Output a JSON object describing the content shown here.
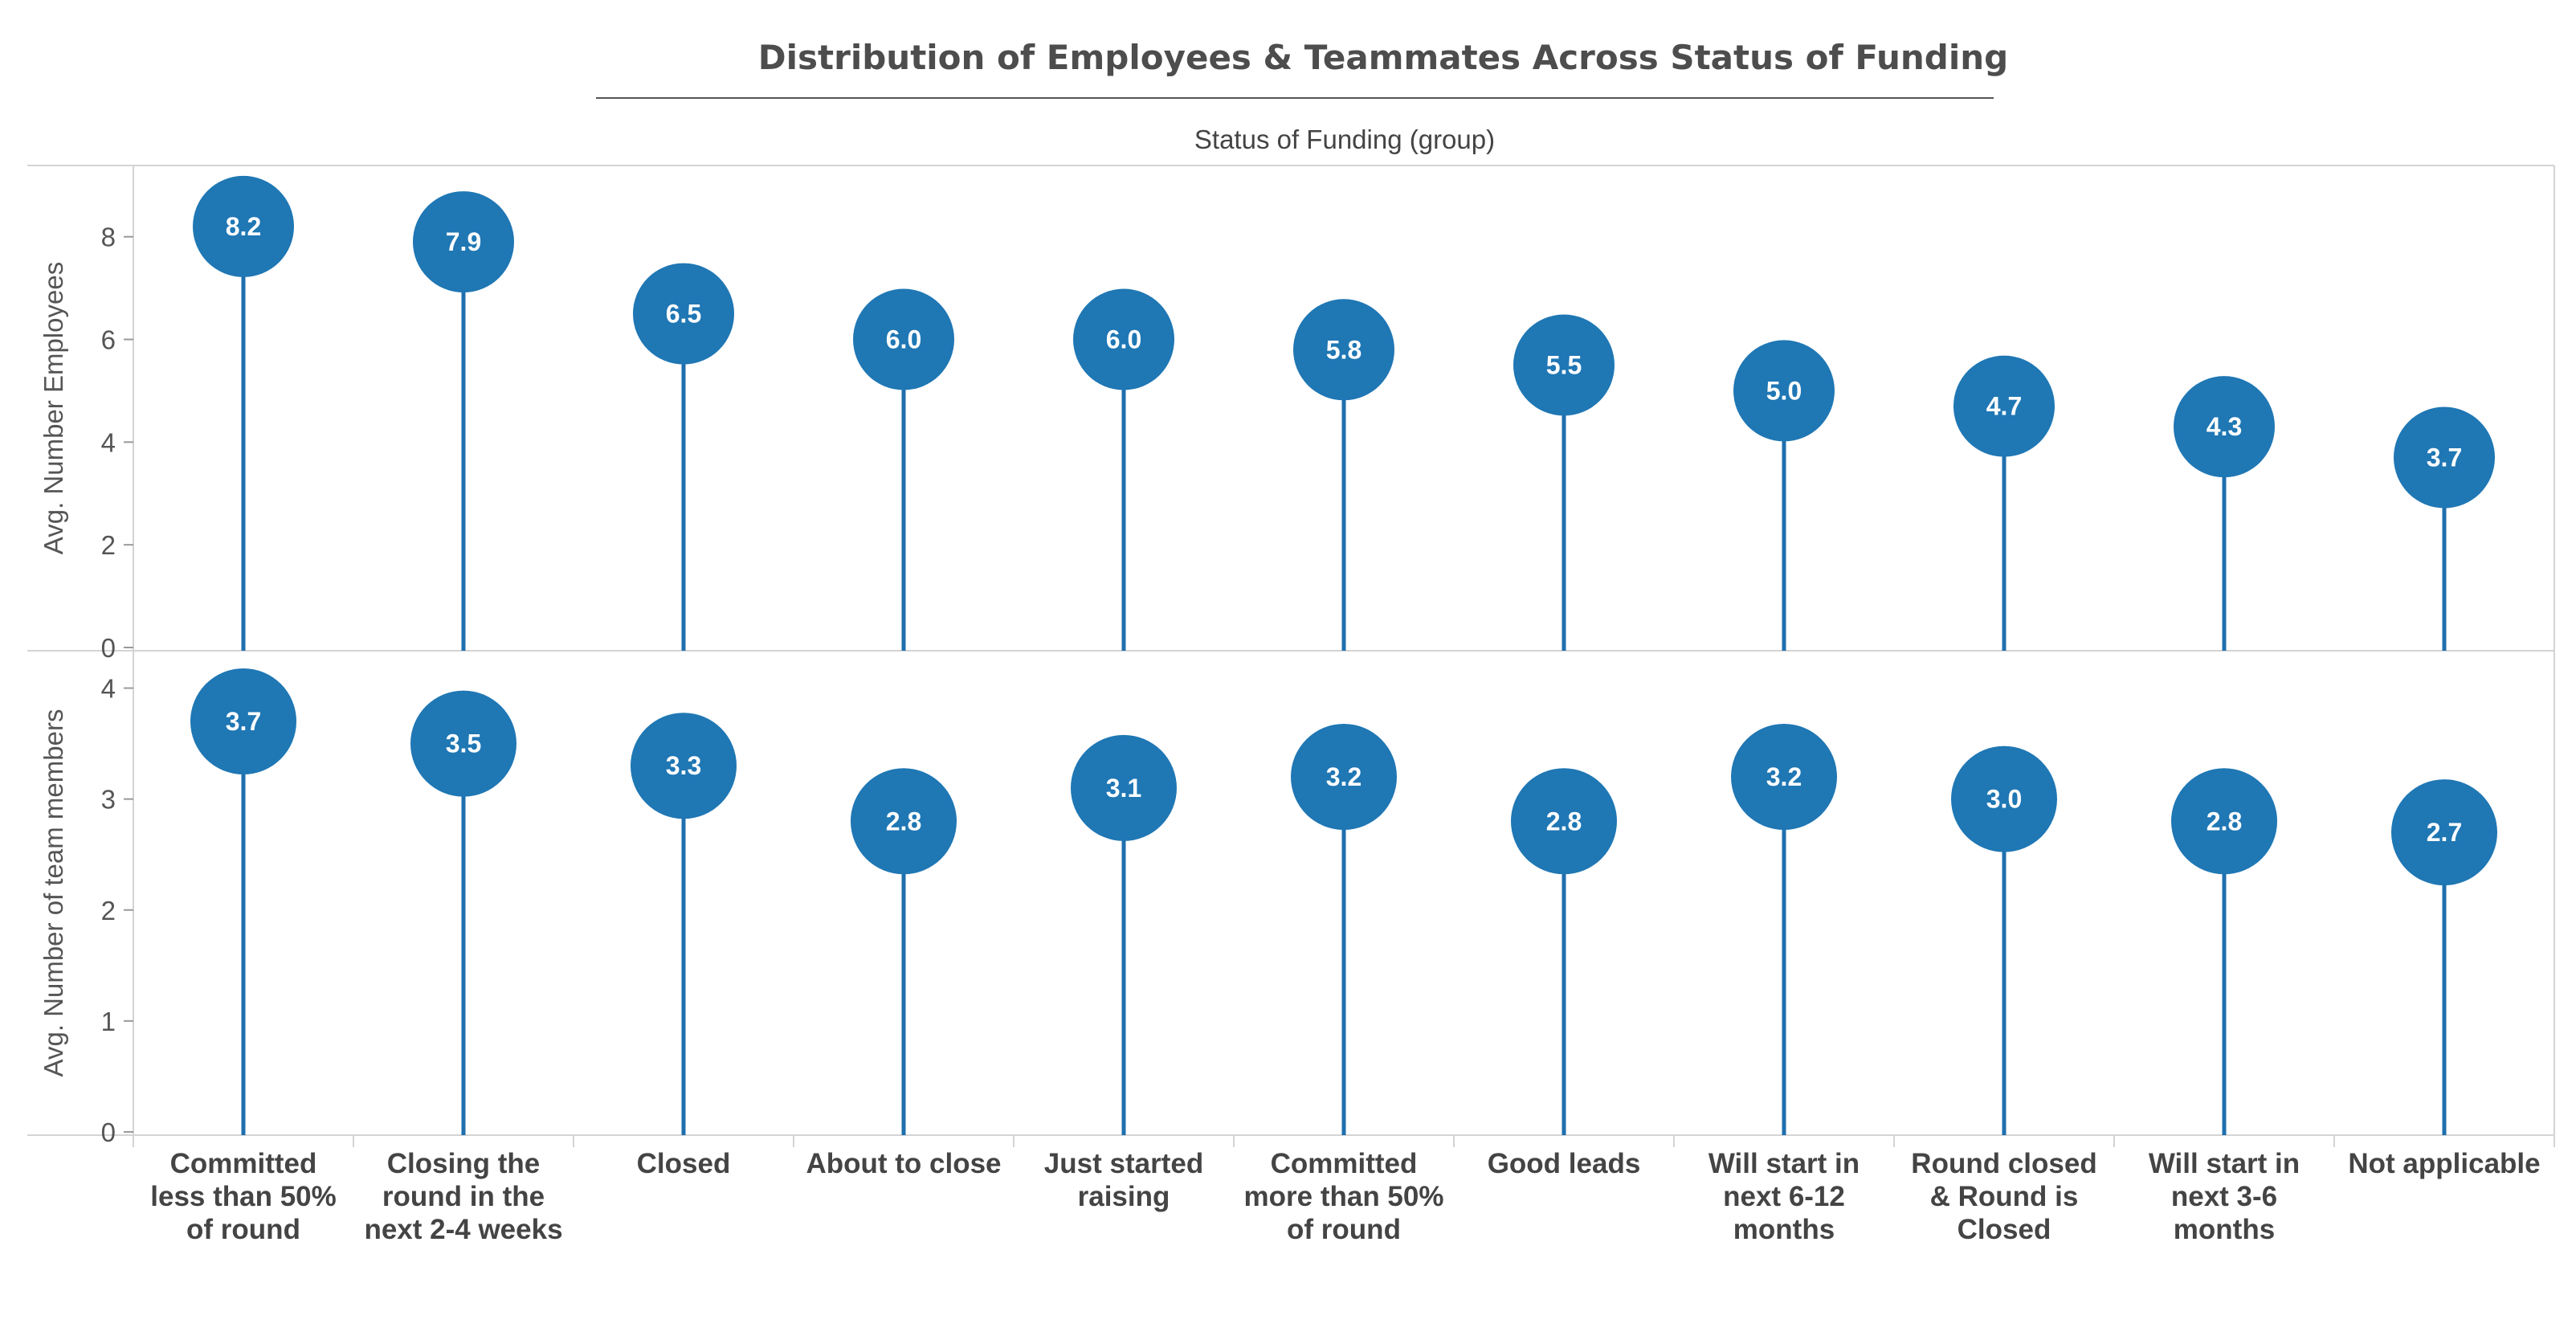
{
  "chart_data": {
    "type": "lollipop",
    "title": "Distribution of Employees & Teammates Across Status of Funding",
    "column_header": "Status of Funding (group)",
    "categories": [
      "Committed less than 50% of round",
      "Closing the round in the next 2-4 weeks",
      "Closed",
      "About to close",
      "Just started raising",
      "Committed more than 50% of round",
      "Good leads",
      "Will start in next 6-12 months",
      "Round closed & Round is Closed",
      "Will start in next 3-6 months",
      "Not applicable"
    ],
    "category_lines": [
      [
        "Committed",
        "less than 50%",
        "of round"
      ],
      [
        "Closing the",
        "round in the",
        "next 2-4 weeks"
      ],
      [
        "Closed"
      ],
      [
        "About to close"
      ],
      [
        "Just started",
        "raising"
      ],
      [
        "Committed",
        "more than 50%",
        "of round"
      ],
      [
        "Good leads"
      ],
      [
        "Will start in",
        "next 6-12",
        "months"
      ],
      [
        "Round closed",
        "& Round is",
        "Closed"
      ],
      [
        "Will start in",
        "next 3-6",
        "months"
      ],
      [
        "Not applicable"
      ]
    ],
    "panels": [
      {
        "ylabel": "Avg. Number Employees",
        "yticks": [
          0,
          2,
          4,
          6,
          8
        ],
        "ylim": [
          0,
          9.2
        ],
        "values": [
          8.2,
          7.9,
          6.5,
          6.0,
          6.0,
          5.8,
          5.5,
          5.0,
          4.7,
          4.3,
          3.7
        ],
        "labels": [
          "8.2",
          "7.9",
          "6.5",
          "6.0",
          "6.0",
          "5.8",
          "5.5",
          "5.0",
          "4.7",
          "4.3",
          "3.7"
        ]
      },
      {
        "ylabel": "Avg. Number of team members",
        "yticks": [
          0,
          1,
          2,
          3,
          4
        ],
        "ylim": [
          0,
          4.25
        ],
        "values": [
          3.7,
          3.5,
          3.3,
          2.8,
          3.1,
          3.2,
          2.8,
          3.2,
          3.0,
          2.8,
          2.7
        ],
        "labels": [
          "3.7",
          "3.5",
          "3.3",
          "2.8",
          "3.1",
          "3.2",
          "2.8",
          "3.2",
          "3.0",
          "2.8",
          "2.7"
        ]
      }
    ],
    "colors": {
      "mark": "#1f77b4",
      "stem": "#1f6fae",
      "grid": "#d4d4d4",
      "title": "#4d4d4d"
    }
  }
}
